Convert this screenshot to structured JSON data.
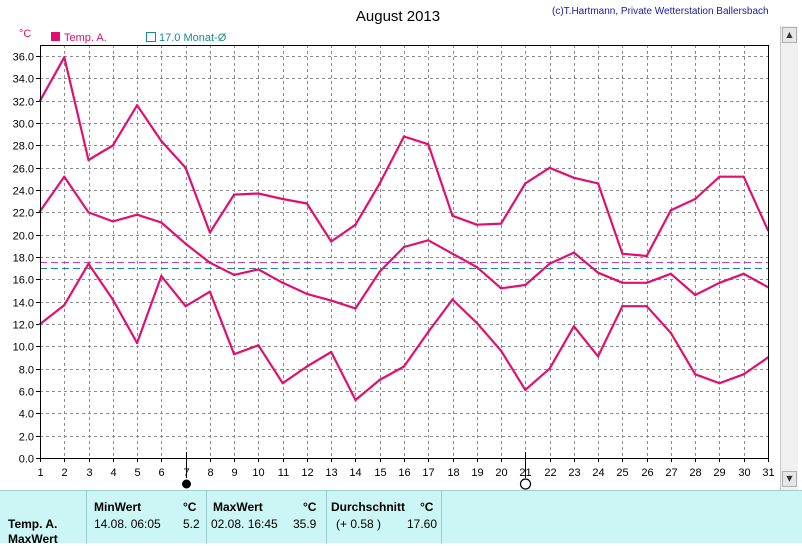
{
  "header": {
    "title": "August 2013",
    "copyright": "(c)T.Hartmann, Private Wetterstation Ballersbach"
  },
  "colors": {
    "series": "#e0106e",
    "average": "#1a8a8a",
    "grid": "#8c8c8c",
    "footer_bg": "#ccf5f5"
  },
  "chart_data": {
    "type": "line",
    "unit_label": "°C",
    "x": [
      1,
      2,
      3,
      4,
      5,
      6,
      7,
      8,
      9,
      10,
      11,
      12,
      13,
      14,
      15,
      16,
      17,
      18,
      19,
      20,
      21,
      22,
      23,
      24,
      25,
      26,
      27,
      28,
      29,
      30,
      31
    ],
    "ylim": [
      0,
      37
    ],
    "yticks": [
      "0.0",
      "2.0",
      "4.0",
      "6.0",
      "8.0",
      "10.0",
      "12.0",
      "14.0",
      "16.0",
      "18.0",
      "20.0",
      "22.0",
      "24.0",
      "26.0",
      "28.0",
      "30.0",
      "32.0",
      "34.0",
      "36.0"
    ],
    "grid": true,
    "legend": [
      {
        "name": "Temp. A.",
        "symbol": "filled-square"
      },
      {
        "name": "17.0 Monat-Ø",
        "symbol": "hollow-square"
      }
    ],
    "series": [
      {
        "name": "max",
        "values": [
          32.0,
          35.9,
          26.7,
          28.0,
          31.6,
          28.4,
          26.0,
          20.2,
          23.6,
          23.7,
          23.2,
          22.8,
          19.4,
          20.9,
          24.6,
          28.8,
          28.1,
          21.7,
          20.9,
          21.0,
          24.6,
          26.0,
          25.1,
          24.6,
          18.3,
          18.1,
          22.2,
          23.2,
          25.2,
          25.2,
          20.4
        ]
      },
      {
        "name": "avg",
        "values": [
          22.1,
          25.2,
          22.0,
          21.2,
          21.8,
          21.1,
          19.2,
          17.5,
          16.4,
          16.9,
          15.7,
          14.7,
          14.1,
          13.4,
          16.7,
          18.9,
          19.5,
          18.3,
          17.1,
          15.2,
          15.5,
          17.4,
          18.4,
          16.6,
          15.7,
          15.7,
          16.5,
          14.6,
          15.7,
          16.5,
          15.3
        ]
      },
      {
        "name": "min",
        "values": [
          12.0,
          13.7,
          17.4,
          14.2,
          10.3,
          16.3,
          13.6,
          14.9,
          9.3,
          10.1,
          6.7,
          8.2,
          9.5,
          5.2,
          7.0,
          8.2,
          11.3,
          14.2,
          12.1,
          9.6,
          6.1,
          8.0,
          11.8,
          9.1,
          13.6,
          13.6,
          11.2,
          7.5,
          6.7,
          7.5,
          9.0
        ]
      }
    ],
    "reference_lines": [
      {
        "name": "17.0 Monat-Ø",
        "value": 17.0,
        "color": "#1a8a8a"
      },
      {
        "name": "",
        "value": 17.6,
        "color": "#c040c0"
      }
    ],
    "markers": [
      {
        "day": 7,
        "symbol": "new-moon"
      },
      {
        "day": 21,
        "symbol": "full-moon"
      }
    ]
  },
  "footer": {
    "row_label1": "Temp. A.",
    "row_label2": "MaxWert",
    "min_header": "MinWert",
    "min_unit": "°C",
    "min_datetime": "14.08.  06:05",
    "min_value": "5.2",
    "max_header": "MaxWert",
    "max_unit": "°C",
    "max_datetime": "02.08.  16:45",
    "max_value": "35.9",
    "avg_header": "Durchschnitt",
    "avg_unit": "°C",
    "avg_delta": "(+ 0.58 )",
    "avg_value": "17.60"
  }
}
